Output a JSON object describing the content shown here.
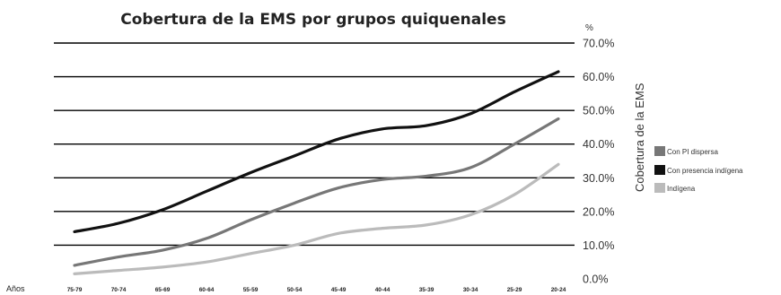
{
  "chart_data": {
    "type": "line",
    "title": "Cobertura de la EMS por grupos quiquenales",
    "unit_label": "%",
    "ylabel": "Cobertura de la EMS",
    "xlabel": "Años",
    "ylim": [
      0,
      70
    ],
    "y_ticks": [
      "0.0%",
      "10.0%",
      "20.0%",
      "30.0%",
      "40.0%",
      "50.0%",
      "60.0%",
      "70.0%"
    ],
    "categories": [
      "75-79",
      "70-74",
      "65-69",
      "60-64",
      "55-59",
      "50-54",
      "45-49",
      "40-44",
      "35-39",
      "30-34",
      "25-29",
      "20-24"
    ],
    "grid": true,
    "legend_position": "right",
    "series": [
      {
        "name": "Con PI dispersa",
        "color": "#777777",
        "values": [
          4.0,
          6.5,
          8.5,
          12.0,
          17.5,
          22.5,
          27.0,
          29.5,
          30.5,
          33.0,
          40.0,
          47.5
        ]
      },
      {
        "name": "Con presencia indígena",
        "color": "#111111",
        "values": [
          14.0,
          16.5,
          20.5,
          26.0,
          31.5,
          36.5,
          41.5,
          44.5,
          45.5,
          49.0,
          55.5,
          61.5
        ]
      },
      {
        "name": "Indígena",
        "color": "#bbbbbb",
        "values": [
          1.5,
          2.5,
          3.5,
          5.0,
          7.5,
          10.0,
          13.5,
          15.0,
          16.0,
          19.0,
          25.0,
          34.0
        ]
      }
    ]
  }
}
